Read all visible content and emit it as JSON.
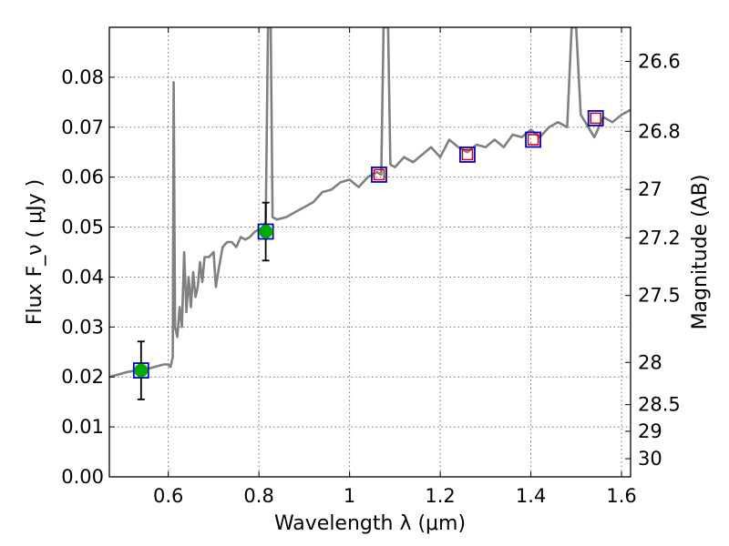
{
  "chart_data": {
    "type": "line",
    "xlabel": "Wavelength λ (μm)",
    "ylabel": "Flux F_ν ( μJy )",
    "ylabel_right": "Magnitude (AB)",
    "xlim": [
      0.47,
      1.62
    ],
    "ylim": [
      0,
      0.09
    ],
    "grid": true,
    "x_ticks": [
      0.6,
      0.8,
      1.0,
      1.2,
      1.4,
      1.6
    ],
    "x_tick_labels": [
      "0.6",
      "0.8",
      "1",
      "1.2",
      "1.4",
      "1.6"
    ],
    "y_ticks": [
      0,
      0.01,
      0.02,
      0.03,
      0.04,
      0.05,
      0.06,
      0.07,
      0.08
    ],
    "y_tick_labels": [
      "0.00",
      "0.01",
      "0.02",
      "0.03",
      "0.04",
      "0.05",
      "0.06",
      "0.07",
      "0.08"
    ],
    "mag_ticks": [
      26.6,
      26.8,
      27,
      27.2,
      27.5,
      28,
      28.5,
      29,
      30
    ],
    "mag_tick_labels": [
      "26.6",
      "26.8",
      "27",
      "27.2",
      "27.5",
      "28",
      "28.5",
      "29",
      "30"
    ],
    "colors": {
      "spectrum": "#808080",
      "model_box": "#0000cc",
      "obs_fill": "#00aa00",
      "upper_box": "#cc0000",
      "errorbar": "#000000"
    },
    "series": [
      {
        "kind": "spectrum",
        "x": [
          0.47,
          0.49,
          0.51,
          0.53,
          0.55,
          0.57,
          0.59,
          0.6,
          0.605,
          0.61,
          0.612,
          0.615,
          0.62,
          0.625,
          0.63,
          0.635,
          0.64,
          0.645,
          0.65,
          0.655,
          0.66,
          0.665,
          0.67,
          0.675,
          0.68,
          0.69,
          0.7,
          0.705,
          0.71,
          0.72,
          0.73,
          0.74,
          0.75,
          0.76,
          0.77,
          0.78,
          0.79,
          0.8,
          0.81,
          0.815,
          0.82,
          0.823,
          0.826,
          0.83,
          0.84,
          0.86,
          0.88,
          0.9,
          0.92,
          0.94,
          0.96,
          0.98,
          1.0,
          1.02,
          1.04,
          1.06,
          1.07,
          1.075,
          1.08,
          1.085,
          1.09,
          1.1,
          1.12,
          1.14,
          1.16,
          1.18,
          1.2,
          1.22,
          1.24,
          1.26,
          1.28,
          1.3,
          1.32,
          1.34,
          1.36,
          1.38,
          1.4,
          1.42,
          1.44,
          1.46,
          1.48,
          1.49,
          1.495,
          1.5,
          1.51,
          1.52,
          1.54,
          1.56,
          1.58,
          1.6,
          1.62
        ],
        "y": [
          0.02,
          0.0205,
          0.021,
          0.0213,
          0.0215,
          0.022,
          0.0225,
          0.0225,
          0.022,
          0.024,
          0.079,
          0.03,
          0.028,
          0.034,
          0.03,
          0.045,
          0.033,
          0.04,
          0.034,
          0.041,
          0.036,
          0.038,
          0.043,
          0.039,
          0.044,
          0.044,
          0.045,
          0.038,
          0.041,
          0.046,
          0.047,
          0.047,
          0.046,
          0.048,
          0.0475,
          0.048,
          0.049,
          0.0495,
          0.05,
          0.051,
          0.09,
          0.09,
          0.09,
          0.052,
          0.0515,
          0.052,
          0.053,
          0.054,
          0.055,
          0.057,
          0.0575,
          0.059,
          0.0595,
          0.058,
          0.06,
          0.061,
          0.0605,
          0.09,
          0.09,
          0.09,
          0.0625,
          0.062,
          0.064,
          0.063,
          0.0645,
          0.066,
          0.064,
          0.0675,
          0.066,
          0.065,
          0.0665,
          0.066,
          0.0675,
          0.066,
          0.0685,
          0.068,
          0.0695,
          0.068,
          0.07,
          0.071,
          0.07,
          0.09,
          0.09,
          0.09,
          0.0725,
          0.071,
          0.068,
          0.072,
          0.071,
          0.0725,
          0.0735
        ]
      },
      {
        "kind": "observed",
        "x": [
          0.54,
          0.815
        ],
        "y": [
          0.0213,
          0.0491
        ],
        "err": [
          0.0058,
          0.0058
        ]
      },
      {
        "kind": "model_synthetic",
        "x": [
          0.54,
          0.815,
          1.065,
          1.26,
          1.405,
          1.543
        ],
        "y": [
          0.0213,
          0.0491,
          0.0605,
          0.0645,
          0.0675,
          0.0718
        ]
      },
      {
        "kind": "upper_limits",
        "x": [
          1.065,
          1.26,
          1.405,
          1.543
        ],
        "y": [
          0.0605,
          0.0645,
          0.0675,
          0.0718
        ]
      }
    ]
  }
}
